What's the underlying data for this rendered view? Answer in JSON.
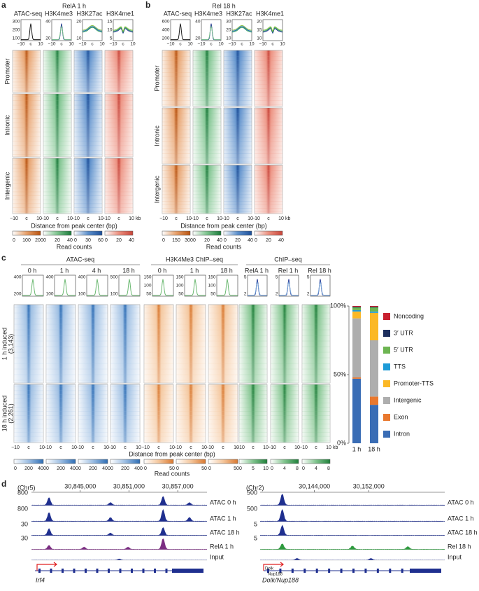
{
  "panel_a": {
    "label": "a",
    "title": "RelA 1 h",
    "columns": [
      {
        "name": "ATAC-seq",
        "yticks": [
          "300",
          "200",
          "100"
        ],
        "colorbar": [
          "0",
          "100",
          "200"
        ]
      },
      {
        "name": "H3K4me3",
        "yticks": [
          "40",
          "20"
        ],
        "colorbar": [
          "0",
          "20",
          "40"
        ]
      },
      {
        "name": "H3K27ac",
        "yticks": [
          "20",
          "10"
        ],
        "colorbar": [
          "0",
          "30",
          "60"
        ]
      },
      {
        "name": "H3K4me1",
        "yticks": [
          "15",
          "10",
          "5"
        ],
        "colorbar": [
          "0",
          "20",
          "40"
        ]
      }
    ],
    "rows": [
      "Promoter",
      "Intronic",
      "Intergenic"
    ],
    "xticks": [
      "−10",
      "c",
      "10"
    ],
    "xunit": "kb",
    "xlabel": "Distance from peak center (bp)",
    "colorbar_label": "Read counts"
  },
  "panel_b": {
    "label": "b",
    "title": "Rel 18 h",
    "columns": [
      {
        "name": "ATAC-seq",
        "yticks": [
          "600",
          "400",
          "200"
        ],
        "colorbar": [
          "0",
          "150",
          "300"
        ]
      },
      {
        "name": "H3K4me3",
        "yticks": [
          "40",
          "20"
        ],
        "colorbar": [
          "0",
          "20",
          "40"
        ]
      },
      {
        "name": "H3K27ac",
        "yticks": [
          "30",
          "20",
          "10"
        ],
        "colorbar": [
          "0",
          "20",
          "40"
        ]
      },
      {
        "name": "H3K4me1",
        "yticks": [
          "20",
          "15",
          "10"
        ],
        "colorbar": [
          "0",
          "20",
          "40"
        ]
      }
    ],
    "rows": [
      "Promoter",
      "Intronic",
      "Intergenic"
    ],
    "xticks": [
      "−10",
      "c",
      "10"
    ],
    "xunit": "kb",
    "xlabel": "Distance from peak center (bp)",
    "colorbar_label": "Read counts"
  },
  "panel_c": {
    "label": "c",
    "groups": [
      {
        "name": "ATAC-seq",
        "columns": [
          {
            "name": "0 h",
            "yticks": [
              "400",
              "200"
            ],
            "colorbar": [
              "0",
              "200",
              "400"
            ]
          },
          {
            "name": "1 h",
            "yticks": [
              "400",
              "100"
            ],
            "colorbar": [
              "0",
              "200",
              "400"
            ]
          },
          {
            "name": "4 h",
            "yticks": [
              "400",
              "100"
            ],
            "colorbar": [
              "0",
              "200",
              "400"
            ]
          },
          {
            "name": "18 h",
            "yticks": [
              "500",
              "100"
            ],
            "colorbar": [
              "0",
              "200",
              "400"
            ]
          }
        ]
      },
      {
        "name": "H3K4Me3 ChIP–seq",
        "columns": [
          {
            "name": "0 h",
            "yticks": [
              "150",
              "100",
              "50"
            ],
            "colorbar": [
              "0",
              "50"
            ]
          },
          {
            "name": "1 h",
            "yticks": [
              "150",
              "100",
              "50"
            ],
            "colorbar": [
              "0",
              "50"
            ]
          },
          {
            "name": "18 h",
            "yticks": [
              "150",
              "100",
              "50"
            ],
            "colorbar": [
              "0",
              "50"
            ]
          }
        ]
      },
      {
        "name": "ChIP–seq",
        "columns": [
          {
            "name": "RelA 1 h",
            "yticks": [
              "5",
              "2"
            ],
            "colorbar": [
              "0",
              "5",
              "10"
            ]
          },
          {
            "name": "Rel 1 h",
            "yticks": [
              "5",
              "2"
            ],
            "colorbar": [
              "0",
              "4",
              "8"
            ]
          },
          {
            "name": "Rel 18 h",
            "yticks": [
              "5",
              "2"
            ],
            "colorbar": [
              "0",
              "4",
              "8"
            ]
          }
        ]
      }
    ],
    "rows": [
      {
        "label": "1 h induced",
        "count": "(3,143)"
      },
      {
        "label": "18 h induced",
        "count": "(2,261)"
      }
    ],
    "xticks": [
      "−10",
      "c",
      "10"
    ],
    "xunit": "kb",
    "xlabel": "Distance from peak center (bp)",
    "colorbar_label": "Read counts"
  },
  "chart_data": {
    "type": "stacked_bar",
    "categories": [
      "1 h",
      "18 h"
    ],
    "series": [
      {
        "name": "Intron",
        "color": "#3a6db5",
        "values": [
          47,
          28
        ]
      },
      {
        "name": "Exon",
        "color": "#e9782e",
        "values": [
          1,
          6
        ]
      },
      {
        "name": "Intergenic",
        "color": "#aeaeae",
        "values": [
          43,
          41
        ]
      },
      {
        "name": "Promoter-TTS",
        "color": "#fbb826",
        "values": [
          5,
          20
        ]
      },
      {
        "name": "TTS",
        "color": "#1e9bd7",
        "values": [
          1,
          1
        ]
      },
      {
        "name": "5′ UTR",
        "color": "#6db552",
        "values": [
          2,
          3
        ]
      },
      {
        "name": "3′ UTR",
        "color": "#1d2f5e",
        "values": [
          0.5,
          0.5
        ]
      },
      {
        "name": "Noncoding",
        "color": "#c8202f",
        "values": [
          0.5,
          0.5
        ]
      }
    ],
    "ylim": [
      0,
      100
    ],
    "yticks": [
      {
        "value": 0,
        "label": "0%"
      },
      {
        "value": 50,
        "label": "50%"
      },
      {
        "value": 100,
        "label": "100%"
      }
    ]
  },
  "panel_d": {
    "label": "d",
    "left": {
      "chrom": "(Chr5)",
      "coords": [
        "30,845,000",
        "30,851,000",
        "30,857,000"
      ],
      "tracks": [
        {
          "name": "ATAC 0 h",
          "scale": "800"
        },
        {
          "name": "ATAC 1 h",
          "scale": "800"
        },
        {
          "name": "ATAC 18 h",
          "scale": "30"
        },
        {
          "name": "RelA 1 h",
          "scale": "30"
        },
        {
          "name": "Input"
        }
      ],
      "gene": "Irf4"
    },
    "right": {
      "chrom": "(Chr2)",
      "coords": [
        "30,144,000",
        "30,152,000"
      ],
      "tracks": [
        {
          "name": "ATAC 0 h",
          "scale": "500"
        },
        {
          "name": "ATAC 1 h",
          "scale": "500"
        },
        {
          "name": "ATAC 18 h",
          "scale": "5"
        },
        {
          "name": "Rel 18 h",
          "scale": "5"
        },
        {
          "name": "Input"
        }
      ],
      "gene": "Dolk/Nup188",
      "gene_labels": [
        "Dolk",
        "Nup188"
      ]
    }
  }
}
